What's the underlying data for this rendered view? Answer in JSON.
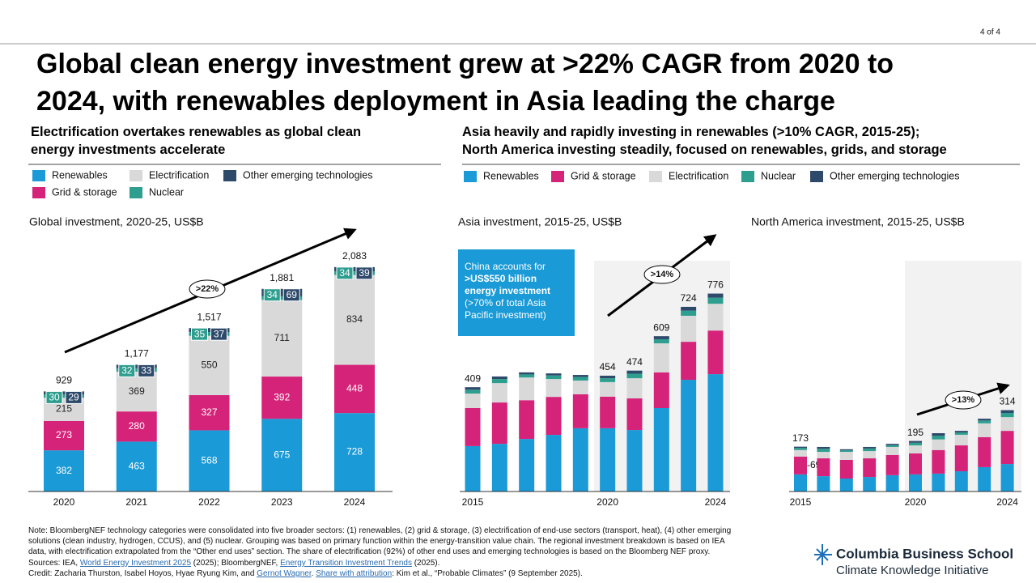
{
  "page_number": "4 of 4",
  "title_lines": [
    "Global clean energy investment grew at >22% CAGR from 2020 to",
    "2024, with renewables deployment in Asia leading the charge"
  ],
  "left_heading_lines": [
    "Electrification overtakes renewables as global clean",
    "energy investments accelerate"
  ],
  "right_heading_lines": [
    "Asia heavily and rapidly investing in renewables (>10% CAGR, 2015-25);",
    "North America investing steadily, focused on renewables, grids, and storage"
  ],
  "chart_data": [
    {
      "type": "bar",
      "stacked": true,
      "data_labels": true,
      "title": "Global investment,  2020-25, US$B",
      "categories": [
        "2020",
        "2021",
        "2022",
        "2023",
        "2024"
      ],
      "series": [
        {
          "name": "Renewables",
          "color": "#1a9ad6",
          "values": [
            382,
            463,
            568,
            675,
            728
          ]
        },
        {
          "name": "Grid & storage",
          "color": "#d6237a",
          "values": [
            273,
            280,
            327,
            392,
            448
          ]
        },
        {
          "name": "Electrification",
          "color": "#d9d9d9",
          "values": [
            215,
            369,
            550,
            711,
            834
          ]
        },
        {
          "name": "Nuclear",
          "color": "#2e9e8f",
          "values": [
            30,
            32,
            35,
            34,
            34
          ]
        },
        {
          "name": "Other emerging technologies",
          "color": "#2e4a6b",
          "values": [
            29,
            33,
            37,
            69,
            39
          ]
        }
      ],
      "totals": [
        929,
        1177,
        1517,
        1881,
        2083
      ],
      "total_labels": [
        "929",
        "1,177",
        "1,517",
        "1,881",
        "2,083"
      ],
      "ylim": [
        0,
        2300
      ],
      "annotation": ">22%"
    },
    {
      "type": "bar",
      "stacked": true,
      "data_labels": false,
      "title": "Asia investment,  2015-25, US$B",
      "categories": [
        "2015",
        null,
        null,
        null,
        null,
        "2020",
        null,
        null,
        null,
        "2024"
      ],
      "series": [
        {
          "name": "Renewables",
          "color": "#1a9ad6",
          "values": [
            178,
            187,
            206,
            222,
            248,
            248,
            241,
            327,
            438,
            460
          ]
        },
        {
          "name": "Grid & storage",
          "color": "#d6237a",
          "values": [
            149,
            162,
            152,
            149,
            133,
            124,
            124,
            140,
            149,
            171
          ]
        },
        {
          "name": "Electrification",
          "color": "#d9d9d9",
          "values": [
            57,
            76,
            89,
            70,
            54,
            57,
            79,
            114,
            102,
            105
          ]
        },
        {
          "name": "Nuclear",
          "color": "#2e9e8f",
          "values": [
            15,
            16,
            12,
            14,
            14,
            15,
            18,
            16,
            20,
            24
          ]
        },
        {
          "name": "Other emerging technologies",
          "color": "#2e4a6b",
          "values": [
            10,
            10,
            8,
            8,
            8,
            10,
            12,
            12,
            15,
            16
          ]
        }
      ],
      "totals": [
        409,
        null,
        null,
        null,
        null,
        454,
        474,
        609,
        724,
        776
      ],
      "ylim": [
        0,
        900
      ],
      "annotation": ">14%",
      "callout": {
        "text": "China accounts for",
        "bold": ">US$550 billion energy investment",
        "rest": "(>70% of total Asia Pacific investment)"
      }
    },
    {
      "type": "bar",
      "stacked": true,
      "data_labels": false,
      "title": "North America investment,  2015-25, US$B",
      "categories": [
        "2015",
        null,
        null,
        null,
        null,
        "2020",
        null,
        null,
        null,
        "2024"
      ],
      "series": [
        {
          "color": "#1a9ad6",
          "values": [
            66,
            59,
            50,
            56,
            63,
            66,
            69,
            78,
            94,
            106
          ]
        },
        {
          "color": "#d6237a",
          "values": [
            69,
            69,
            72,
            72,
            78,
            81,
            91,
            100,
            116,
            128
          ]
        },
        {
          "color": "#d9d9d9",
          "values": [
            25,
            25,
            31,
            28,
            31,
            31,
            41,
            41,
            53,
            53
          ]
        },
        {
          "color": "#2e9e8f",
          "values": [
            8,
            12,
            6,
            10,
            7,
            10,
            14,
            9,
            11,
            16
          ]
        },
        {
          "color": "#2e4a6b",
          "values": [
            5,
            7,
            4,
            6,
            5,
            7,
            10,
            6,
            7,
            11
          ]
        }
      ],
      "totals": [
        173,
        null,
        null,
        null,
        null,
        195,
        null,
        null,
        null,
        314
      ],
      "ylim": [
        0,
        900
      ],
      "annotation": ">13%",
      "extra_label": "-69"
    }
  ],
  "notes": [
    "Note: BloombergNEF  technology categories were consolidated into five broader sectors: (1) renewables, (2) grid & storage, (3) electrification of end-use sectors (transport, heat), (4) other emerging",
    "solutions (clean industry, hydrogen, CCUS), and (5) nuclear. Grouping was based on primary function within the energy-transition value chain. The regional investment breakdown is based on IEA",
    "data, with electrification extrapolated from the “Other end uses” section. The share of electrification (92%) of other end uses and emerging technologies is based on the Bloomberg NEF  proxy."
  ],
  "sources": [
    {
      "text": "Sources: IEA, "
    },
    {
      "text": "World Energy Investment 2025",
      "link": true
    },
    {
      "text": " (2025); BloombergNEF, "
    },
    {
      "text": "Energy Transition Investment Trends",
      "link": true
    },
    {
      "text": " (2025)."
    }
  ],
  "credit": [
    {
      "text": "Credit: Zacharia Thurston, Isabel Hoyos, Hyae Ryung Kim, and "
    },
    {
      "text": "Gernot Wagner",
      "link": true
    },
    {
      "text": ". "
    },
    {
      "text": "Share with attribution",
      "link": true
    },
    {
      "text": ": Kim et al., “Probable Climates” (9 September 2025)."
    }
  ],
  "logo": {
    "name": "Columbia Business School",
    "sub": "Climate Knowledge Initiative"
  }
}
